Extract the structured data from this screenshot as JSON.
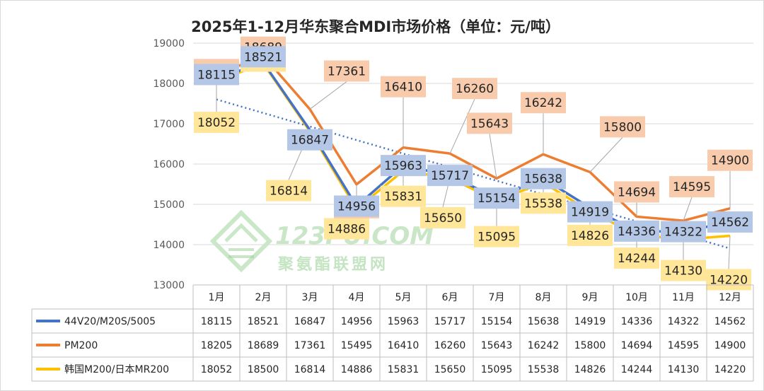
{
  "chart_data": {
    "type": "line",
    "title": "2025年1-12月华东聚合MDI市场价格（单位：元/吨）",
    "categories": [
      "1月",
      "2月",
      "3月",
      "4月",
      "5月",
      "6月",
      "7月",
      "8月",
      "9月",
      "10月",
      "11月",
      "12月"
    ],
    "ylim": [
      13000,
      19000
    ],
    "yticks": [
      13000,
      14000,
      15000,
      16000,
      17000,
      18000,
      19000
    ],
    "grid": true,
    "legend": "data-table",
    "series": [
      {
        "name": "44V20/M20S/5005",
        "color": "#4472c4",
        "label_bg": "#b4c7e7",
        "values": [
          18115,
          18521,
          16847,
          14956,
          15963,
          15717,
          15154,
          15638,
          14919,
          14336,
          14322,
          14562
        ]
      },
      {
        "name": "PM200",
        "color": "#ed7d31",
        "label_bg": "#f8cbad",
        "values": [
          18205,
          18689,
          17361,
          15495,
          16410,
          16260,
          15643,
          16242,
          15800,
          14694,
          14595,
          14900
        ]
      },
      {
        "name": "韩国M200/日本MR200",
        "color": "#ffc000",
        "label_bg": "#ffe699",
        "values": [
          18052,
          18500,
          16814,
          14886,
          15831,
          15650,
          15095,
          15538,
          14826,
          14244,
          14130,
          14220
        ]
      }
    ],
    "trendline": {
      "series": "44V20/M20S/5005",
      "color": "#4472c4",
      "style": "dotted"
    }
  },
  "watermark": {
    "text_latin": "123PU.COM",
    "text_cn": "聚氨酯联盟网"
  }
}
